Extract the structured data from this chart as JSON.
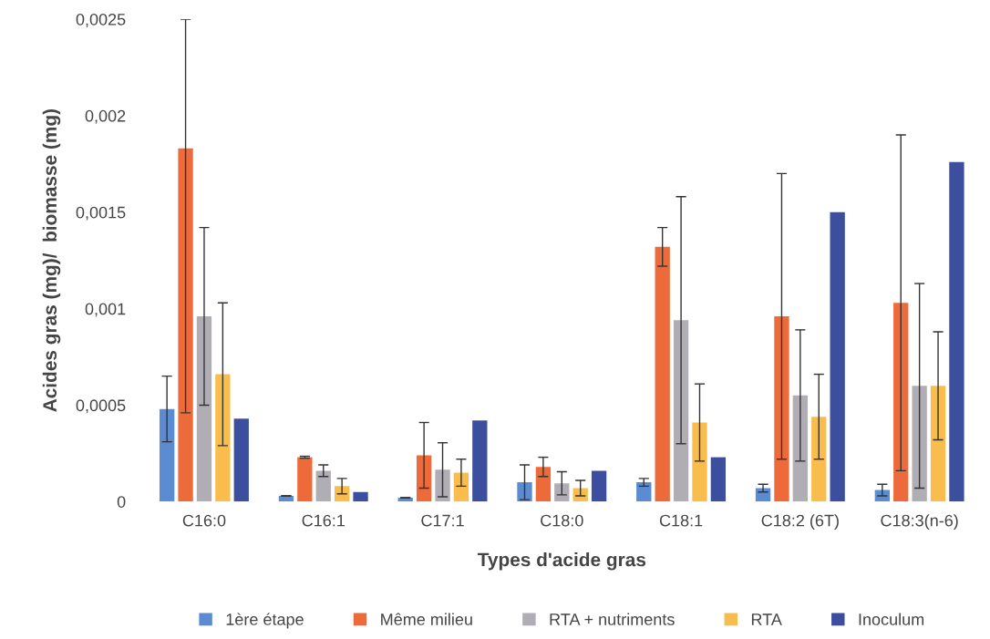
{
  "chart_data": {
    "type": "bar",
    "xlabel": "Types d'acide gras",
    "ylabel": "Acides gras (mg)/  biomasse (mg)",
    "categories": [
      "C16:0",
      "C16:1",
      "C17:1",
      "C18:0",
      "C18:1",
      "C18:2 (6T)",
      "C18:3(n-6)"
    ],
    "series": [
      {
        "name": "1ère étape",
        "color": "#5b8bd0",
        "values": [
          0.00048,
          3e-05,
          2e-05,
          0.0001,
          0.0001,
          7e-05,
          6e-05
        ],
        "errors": [
          0.00017,
          null,
          null,
          9e-05,
          2e-05,
          2e-05,
          3e-05
        ]
      },
      {
        "name": "Même milieu",
        "color": "#ed6a3a",
        "values": [
          0.00183,
          0.00023,
          0.00024,
          0.00018,
          0.00132,
          0.00096,
          0.00103
        ],
        "errors": [
          [
            0.00046,
            0.0025
          ],
          5e-06,
          0.00017,
          5e-05,
          0.0001,
          0.00074,
          0.00087
        ]
      },
      {
        "name": "RTA + nutriments",
        "color": "#b0adb5",
        "values": [
          0.00096,
          0.00016,
          0.000165,
          9.5e-05,
          0.00094,
          0.00055,
          0.0006
        ],
        "errors": [
          0.00046,
          3e-05,
          0.00014,
          6e-05,
          0.00064,
          0.00034,
          0.00053
        ]
      },
      {
        "name": "RTA",
        "color": "#f9bd4e",
        "values": [
          0.00066,
          8e-05,
          0.00015,
          7e-05,
          0.00041,
          0.00044,
          0.0006
        ],
        "errors": [
          0.00037,
          4e-05,
          7e-05,
          4e-05,
          0.0002,
          0.00022,
          0.00028
        ]
      },
      {
        "name": "Inoculum",
        "color": "#3c4f9f",
        "values": [
          0.00043,
          5e-05,
          0.00042,
          0.00016,
          0.00023,
          0.0015,
          0.00176
        ]
      }
    ],
    "ylim": [
      0,
      0.0025
    ],
    "yticks": [
      0,
      {
        "value": 0.0005,
        "label": "0,0005"
      },
      {
        "value": 0.001,
        "label": "0,001"
      },
      {
        "value": 0.0015,
        "label": "0,0015"
      },
      {
        "value": 0.002,
        "label": "0,002"
      },
      {
        "value": 0.0025,
        "label": "0,0025"
      }
    ],
    "grid": false,
    "legend": "bottom"
  }
}
